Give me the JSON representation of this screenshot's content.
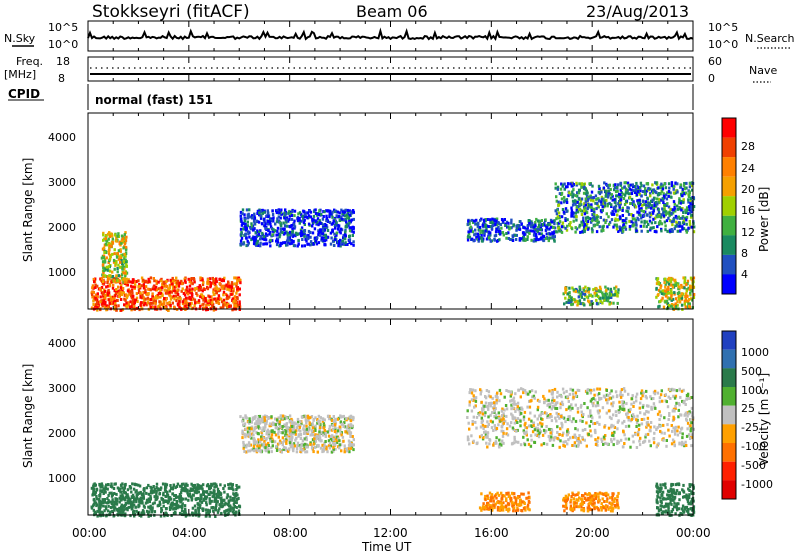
{
  "header": {
    "station": "Stokkseyri (fitACF)",
    "beam": "Beam 06",
    "date": "23/Aug/2013"
  },
  "nsky_panel": {
    "label": "N.Sky",
    "right_label": "N.Search",
    "ticks": [
      "10^5",
      "10^0"
    ]
  },
  "freq_panel": {
    "label_line1": "Freq.",
    "label_line2": "[MHz]",
    "left_ticks": [
      "18",
      "8"
    ],
    "right_ticks": [
      "60",
      "0"
    ],
    "right_label": "Nave"
  },
  "cpid_panel": {
    "label": "CPID",
    "mode": "normal (fast) 151"
  },
  "power_panel": {
    "ylabel": "Slant Range [km]",
    "yticks": [
      "4000",
      "3000",
      "2000",
      "1000"
    ],
    "colorbar_label": "Power [dB]",
    "colorbar_ticks": [
      "28",
      "24",
      "20",
      "16",
      "12",
      "8",
      "4"
    ],
    "colors": [
      "#ff0000",
      "#f04000",
      "#ff8000",
      "#f5a000",
      "#a0d000",
      "#40b040",
      "#1a8a60",
      "#2050c0",
      "#0000ff"
    ]
  },
  "velocity_panel": {
    "ylabel": "Slant Range [km]",
    "yticks": [
      "4000",
      "3000",
      "2000",
      "1000"
    ],
    "colorbar_label": "Velocity [m s⁻¹]",
    "colorbar_ticks": [
      "1000",
      "500",
      "100",
      "25",
      "-25",
      "-100",
      "-500",
      "-1000"
    ],
    "colors": [
      "#2040c0",
      "#3070b0",
      "#2a7a4a",
      "#50b030",
      "#c0c0c0",
      "#ffa000",
      "#ff7000",
      "#ff2000",
      "#e00000"
    ]
  },
  "time_axis": {
    "ticks": [
      "00:00",
      "04:00",
      "08:00",
      "12:00",
      "16:00",
      "20:00",
      "00:00"
    ],
    "label": "Time UT"
  },
  "chart_data": [
    {
      "type": "heatmap",
      "title": "Power",
      "x_range_hours": [
        0,
        24
      ],
      "ylim": [
        180,
        4500
      ],
      "scatter_regions": [
        {
          "t0": 0.1,
          "t1": 6.0,
          "r0": 180,
          "r1": 900,
          "power_db": 26,
          "note": "near-range echoes 00-06 UT"
        },
        {
          "t0": 0.5,
          "t1": 1.5,
          "r0": 800,
          "r1": 1900,
          "power_db": 18
        },
        {
          "t0": 6.0,
          "t1": 10.5,
          "r0": 1600,
          "r1": 2400,
          "power_db": 6
        },
        {
          "t0": 15.0,
          "t1": 18.5,
          "r0": 1700,
          "r1": 2200,
          "power_db": 8
        },
        {
          "t0": 18.5,
          "t1": 24.0,
          "r0": 1900,
          "r1": 3000,
          "power_db": 10
        },
        {
          "t0": 18.8,
          "t1": 21.0,
          "r0": 300,
          "r1": 700,
          "power_db": 14
        },
        {
          "t0": 22.5,
          "t1": 24.0,
          "r0": 200,
          "r1": 900,
          "power_db": 18
        }
      ]
    },
    {
      "type": "heatmap",
      "title": "Velocity",
      "x_range_hours": [
        0,
        24
      ],
      "ylim": [
        180,
        4500
      ],
      "scatter_regions": [
        {
          "t0": 0.1,
          "t1": 6.0,
          "r0": 180,
          "r1": 900,
          "velocity_ms": 100
        },
        {
          "t0": 6.0,
          "t1": 10.5,
          "r0": 1600,
          "r1": 2400,
          "velocity_ms": 0
        },
        {
          "t0": 15.0,
          "t1": 24.0,
          "r0": 1700,
          "r1": 3000,
          "velocity_ms": 0
        },
        {
          "t0": 15.5,
          "t1": 17.5,
          "r0": 300,
          "r1": 700,
          "velocity_ms": -100
        },
        {
          "t0": 18.8,
          "t1": 21.0,
          "r0": 300,
          "r1": 700,
          "velocity_ms": -100
        },
        {
          "t0": 22.5,
          "t1": 24.0,
          "r0": 200,
          "r1": 900,
          "velocity_ms": 100
        }
      ]
    }
  ]
}
